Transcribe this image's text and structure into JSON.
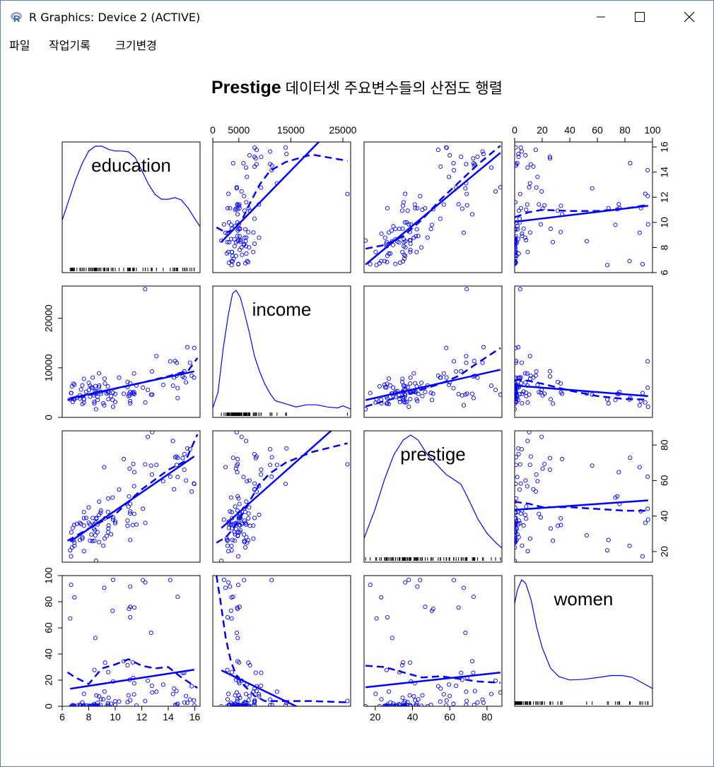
{
  "window": {
    "title": "R Graphics: Device 2 (ACTIVE)",
    "icon": "r-logo-icon",
    "buttons": [
      "minimize-icon",
      "maximize-icon",
      "close-icon"
    ]
  },
  "menu": {
    "items": [
      "파일",
      "작업기록",
      "크기변경"
    ]
  },
  "plot": {
    "title_bold": "Prestige",
    "title_rest": "데이터셋 주요변수들의 산점도 행렬",
    "colors": {
      "points": "#0000ff",
      "lines": "#0000ff",
      "frame": "#000000"
    }
  },
  "chart_data": {
    "type": "scatter",
    "variables": [
      "education",
      "income",
      "prestige",
      "women"
    ],
    "ranges": {
      "education": [
        6,
        16.4
      ],
      "income": [
        0,
        26500
      ],
      "prestige": [
        14,
        88
      ],
      "women": [
        0,
        100
      ]
    },
    "ticks": {
      "education": [
        6,
        8,
        10,
        12,
        14,
        16
      ],
      "income_top": [
        0,
        5000,
        15000,
        25000
      ],
      "income_left": [
        0,
        10000,
        20000
      ],
      "prestige_right": [
        20,
        40,
        60,
        80
      ],
      "prestige_bottom": [
        20,
        40,
        60,
        80
      ],
      "women_top": [
        0,
        20,
        40,
        60,
        80,
        100
      ],
      "women_left": [
        0,
        20,
        40,
        60,
        80,
        100
      ],
      "education_right": [
        6,
        8,
        10,
        12,
        14,
        16
      ]
    },
    "data": {
      "education": [
        13.11,
        12.26,
        12.77,
        11.42,
        14.62,
        15.64,
        15.09,
        15.44,
        14.52,
        14.64,
        14.71,
        15.34,
        15.77,
        14.15,
        15.22,
        14.44,
        14.36,
        15.96,
        15.94,
        14.71,
        12.46,
        13.62,
        15.21,
        12.79,
        11.09,
        12.71,
        11.44,
        11.32,
        10.64,
        11.36,
        9.17,
        12.09,
        11.04,
        9.84,
        11.13,
        11.43,
        11.0,
        9.84,
        11.13,
        12.27,
        11.13,
        10.0,
        10.93,
        8.78,
        9.23,
        11.13,
        11.6,
        10.93,
        8.43,
        7.64,
        6.92,
        6.6,
        6.67,
        8.28,
        8.5,
        9.48,
        9.5,
        8.78,
        8.1,
        10.29,
        8.92,
        10.0,
        6.74,
        8.0,
        7.64,
        7.42,
        6.69,
        7.11,
        8.9,
        8.47,
        7.64,
        8.58,
        7.52,
        8.5,
        9.45,
        6.84,
        8.2,
        8.3,
        7.52,
        9.47,
        7.81,
        9.19,
        6.79,
        8.42,
        6.92,
        9.47,
        9.35,
        7.33,
        8.01,
        6.9,
        8.79,
        8.4,
        9.8,
        8.58,
        9.69,
        8.66,
        7.64,
        8.67,
        8.55,
        9.1,
        7.33,
        8.1
      ],
      "income": [
        12351,
        25879,
        9271,
        8865,
        8403,
        11030,
        8258,
        14163,
        11377,
        11023,
        5902,
        7059,
        8425,
        11316,
        8011,
        8034,
        6402,
        14000,
        8044,
        3910,
        5540,
        6565,
        9301,
        4600,
        4446,
        4605,
        4700,
        5052,
        4762,
        4785,
        2448,
        6005,
        4770,
        5004,
        5130,
        5090,
        4300,
        2150,
        3300,
        3010,
        2840,
        4710,
        6110,
        8895,
        6840,
        6880,
        6430,
        7150,
        2800,
        3000,
        3600,
        3620,
        4900,
        6020,
        4800,
        3670,
        5220,
        6090,
        6390,
        8020,
        4740,
        3120,
        6260,
        6980,
        3700,
        5620,
        4920,
        4020,
        5150,
        5310,
        7780,
        5340,
        6450,
        6320,
        6240,
        6800,
        6010,
        8030,
        2700,
        4960,
        5180,
        7810,
        3100,
        3150,
        6600,
        5210,
        4800,
        4460,
        5510,
        3820,
        6440,
        4460,
        3520,
        4990,
        4300,
        4150,
        3650,
        3520,
        1650,
        2850,
        3790,
        4190
      ],
      "prestige": [
        68.8,
        69.1,
        63.4,
        56.8,
        73.5,
        77.6,
        72.6,
        78.1,
        73.1,
        68.8,
        62.0,
        60.0,
        53.8,
        62.2,
        74.9,
        55.1,
        82.3,
        58.1,
        58.3,
        72.8,
        84.6,
        59.6,
        66.1,
        87.2,
        66.7,
        68.4,
        64.7,
        34.9,
        72.1,
        69.3,
        67.5,
        44.1,
        51.1,
        39.2,
        46.8,
        41.2,
        45.3,
        38.0,
        42.6,
        36.1,
        26.5,
        35.9,
        37.4,
        40.7,
        38.7,
        41.4,
        35.2,
        34.5,
        26.1,
        20.2,
        23.2,
        20.7,
        17.3,
        25.9,
        29.1,
        33.0,
        34.7,
        25.3,
        35.3,
        54.9,
        43.1,
        36.9,
        22.3,
        44.8,
        38.8,
        35.5,
        30.8,
        35.6,
        41.8,
        31.9,
        34.6,
        38.9,
        28.1,
        36.2,
        42.3,
        26.3,
        29.6,
        38.9,
        27.3,
        49.9,
        38.9,
        27.3,
        33.3,
        35.4,
        25.0,
        30.9,
        28.8,
        36.1,
        36.2,
        34.9,
        48.1,
        32.8,
        50.4,
        38.5,
        29.7,
        30.9,
        42.2,
        35.3,
        14.8,
        23.3,
        26.5,
        26.1
      ],
      "women": [
        11.16,
        4.02,
        15.7,
        9.11,
        11.68,
        5.13,
        25.65,
        2.69,
        1.03,
        0.94,
        1.91,
        7.83,
        15.33,
        96.53,
        2.87,
        13.58,
        9.39,
        0.72,
        4.43,
        83.78,
        19.59,
        16.6,
        25.58,
        10.56,
        20.3,
        56.25,
        75.53,
        33.57,
        34.45,
        21.65,
        90.67,
        96.53,
        74.5,
        18.97,
        76.1,
        17.58,
        8.37,
        96.79,
        91.59,
        94.8,
        68.09,
        3.76,
        3.12,
        7.62,
        33.39,
        4.56,
        0.52,
        31.36,
        27.75,
        9.47,
        83.36,
        67.23,
        92.86,
        0.47,
        52.27,
        26.12,
        6.48,
        0.0,
        0.0,
        3.6,
        5.37,
        1.29,
        0.0,
        0.35,
        0.0,
        0.53,
        0.0,
        0.37,
        0.84,
        0.74,
        0.51,
        0.63,
        2.95,
        0.0,
        2.33,
        0.46,
        0.42,
        0.66,
        0.0,
        1.12,
        0.66,
        11.24,
        0.93,
        0.24,
        0.37,
        0.0,
        0.0,
        0.6,
        0.37,
        0.0,
        0.0,
        1.63,
        73.09,
        8.32,
        1.98,
        0.72,
        0.8,
        2.61,
        0.0,
        5.31,
        1.42,
        0.0
      ]
    },
    "smooth_dashed": {
      "education_income": [
        [
          6.4,
          3500
        ],
        [
          8,
          4500
        ],
        [
          10,
          5800
        ],
        [
          12,
          7000
        ],
        [
          14,
          8300
        ],
        [
          15.5,
          9400
        ],
        [
          16.2,
          12000
        ]
      ],
      "education_prestige": [
        [
          6.4,
          26
        ],
        [
          8,
          33
        ],
        [
          10,
          41
        ],
        [
          12,
          55
        ],
        [
          14,
          66
        ],
        [
          15.3,
          71
        ],
        [
          16.2,
          86
        ]
      ],
      "education_women": [
        [
          6.4,
          26
        ],
        [
          7,
          22
        ],
        [
          8,
          17
        ],
        [
          9,
          29
        ],
        [
          10,
          32
        ],
        [
          11,
          36
        ],
        [
          12,
          31
        ],
        [
          13,
          29
        ],
        [
          14,
          30
        ],
        [
          15,
          22
        ],
        [
          16.2,
          14
        ]
      ],
      "income_education": [
        [
          700,
          9.6
        ],
        [
          2500,
          9.2
        ],
        [
          4000,
          9.4
        ],
        [
          5500,
          10.1
        ],
        [
          7000,
          11.4
        ],
        [
          9000,
          13.0
        ],
        [
          11000,
          14.1
        ],
        [
          14000,
          14.8
        ],
        [
          19000,
          15.4
        ],
        [
          25900,
          14.9
        ]
      ],
      "income_prestige": [
        [
          700,
          25
        ],
        [
          2500,
          28
        ],
        [
          4000,
          33
        ],
        [
          5500,
          40
        ],
        [
          7000,
          48
        ],
        [
          9000,
          58
        ],
        [
          11000,
          64
        ],
        [
          14000,
          70
        ],
        [
          19000,
          76
        ],
        [
          25900,
          81
        ]
      ],
      "income_women": [
        [
          700,
          100
        ],
        [
          1500,
          80
        ],
        [
          2500,
          52
        ],
        [
          3500,
          34
        ],
        [
          4500,
          24
        ],
        [
          6000,
          16
        ],
        [
          8000,
          8
        ],
        [
          10000,
          4
        ],
        [
          14000,
          4
        ],
        [
          19000,
          4
        ],
        [
          25900,
          3
        ]
      ],
      "prestige_education": [
        [
          14.8,
          7.9
        ],
        [
          25,
          8.2
        ],
        [
          35,
          8.9
        ],
        [
          45,
          10.2
        ],
        [
          55,
          11.8
        ],
        [
          65,
          13.2
        ],
        [
          75,
          14.6
        ],
        [
          87.2,
          16.1
        ]
      ],
      "prestige_income": [
        [
          14.8,
          2200
        ],
        [
          25,
          3300
        ],
        [
          35,
          4300
        ],
        [
          45,
          5600
        ],
        [
          55,
          6800
        ],
        [
          65,
          8400
        ],
        [
          75,
          11000
        ],
        [
          87.2,
          14000
        ]
      ],
      "prestige_women": [
        [
          14.8,
          31
        ],
        [
          25,
          30
        ],
        [
          35,
          26
        ],
        [
          45,
          22
        ],
        [
          55,
          23
        ],
        [
          65,
          21
        ],
        [
          75,
          19
        ],
        [
          87.2,
          18
        ]
      ],
      "women_education": [
        [
          0,
          10.4
        ],
        [
          10,
          10.8
        ],
        [
          20,
          11.0
        ],
        [
          40,
          10.9
        ],
        [
          60,
          10.9
        ],
        [
          80,
          11.1
        ],
        [
          97,
          11.4
        ]
      ],
      "women_income": [
        [
          0,
          7600
        ],
        [
          10,
          7400
        ],
        [
          20,
          6800
        ],
        [
          40,
          5400
        ],
        [
          60,
          4300
        ],
        [
          80,
          3700
        ],
        [
          97,
          3600
        ]
      ],
      "women_prestige": [
        [
          0,
          48
        ],
        [
          10,
          47
        ],
        [
          20,
          45
        ],
        [
          40,
          45
        ],
        [
          60,
          44
        ],
        [
          80,
          43
        ],
        [
          97,
          43
        ]
      ]
    },
    "densities": {
      "education": [
        [
          6.0,
          0.06
        ],
        [
          6.5,
          0.085
        ],
        [
          7.0,
          0.11
        ],
        [
          7.5,
          0.13
        ],
        [
          8.0,
          0.146
        ],
        [
          8.5,
          0.152
        ],
        [
          9.0,
          0.152
        ],
        [
          9.5,
          0.148
        ],
        [
          10.0,
          0.146
        ],
        [
          10.5,
          0.146
        ],
        [
          11.0,
          0.145
        ],
        [
          11.5,
          0.138
        ],
        [
          12.0,
          0.122
        ],
        [
          12.5,
          0.105
        ],
        [
          13.0,
          0.092
        ],
        [
          13.5,
          0.086
        ],
        [
          14.0,
          0.086
        ],
        [
          14.5,
          0.088
        ],
        [
          15.0,
          0.085
        ],
        [
          15.5,
          0.075
        ],
        [
          16.0,
          0.062
        ],
        [
          16.4,
          0.052
        ]
      ],
      "income": [
        [
          0,
          5e-06
        ],
        [
          1000,
          2e-05
        ],
        [
          2000,
          6.2e-05
        ],
        [
          3000,
          9.5e-05
        ],
        [
          3800,
          0.000115
        ],
        [
          4500,
          0.000118
        ],
        [
          5300,
          0.000111
        ],
        [
          6000,
          9.8e-05
        ],
        [
          7000,
          7.8e-05
        ],
        [
          8000,
          5.5e-05
        ],
        [
          9000,
          4e-05
        ],
        [
          10000,
          2.8e-05
        ],
        [
          11000,
          1.9e-05
        ],
        [
          12000,
          1.2e-05
        ],
        [
          14000,
          9e-06
        ],
        [
          16000,
          6e-06
        ],
        [
          18000,
          8e-06
        ],
        [
          20000,
          8e-06
        ],
        [
          22000,
          6e-06
        ],
        [
          24000,
          5e-06
        ],
        [
          25000,
          7e-06
        ],
        [
          26500,
          4e-06
        ]
      ],
      "prestige": [
        [
          14,
          0.004
        ],
        [
          20,
          0.01
        ],
        [
          25,
          0.016
        ],
        [
          30,
          0.021
        ],
        [
          35,
          0.024
        ],
        [
          39,
          0.025
        ],
        [
          43,
          0.024
        ],
        [
          48,
          0.021
        ],
        [
          53,
          0.019
        ],
        [
          58,
          0.017
        ],
        [
          62,
          0.016
        ],
        [
          66,
          0.015
        ],
        [
          70,
          0.012
        ],
        [
          75,
          0.008
        ],
        [
          80,
          0.005
        ],
        [
          85,
          0.003
        ],
        [
          88,
          0.002
        ]
      ],
      "women": [
        [
          0,
          0.029
        ],
        [
          2,
          0.033
        ],
        [
          5,
          0.036
        ],
        [
          8,
          0.035
        ],
        [
          12,
          0.03
        ],
        [
          16,
          0.022
        ],
        [
          20,
          0.016
        ],
        [
          26,
          0.01
        ],
        [
          32,
          0.0075
        ],
        [
          40,
          0.0065
        ],
        [
          50,
          0.0067
        ],
        [
          60,
          0.0072
        ],
        [
          70,
          0.0078
        ],
        [
          78,
          0.0078
        ],
        [
          85,
          0.0073
        ],
        [
          92,
          0.0058
        ],
        [
          100,
          0.004
        ]
      ]
    },
    "diagonal_labels": [
      "education",
      "income",
      "prestige",
      "women"
    ]
  }
}
